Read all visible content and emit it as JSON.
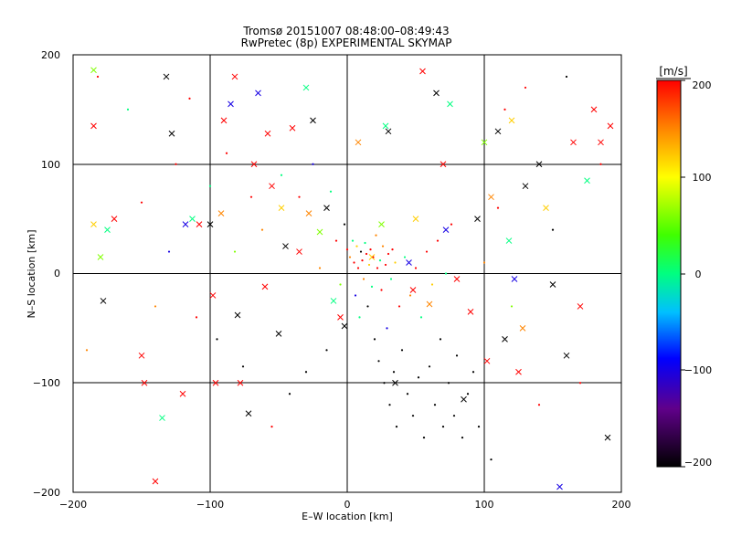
{
  "chart_data": {
    "type": "scatter",
    "title": "Tromsø 20151007 08:48:00–08:49:43",
    "subtitle": "RwPretec (8p) EXPERIMENTAL SKYMAP",
    "xlabel": "E–W location [km]",
    "ylabel": "N–S location [km]",
    "xlim": [
      -200,
      200
    ],
    "ylim": [
      -200,
      200
    ],
    "x_ticks": [
      "−200",
      "−100",
      "0",
      "100",
      "200"
    ],
    "y_ticks": [
      "−200",
      "−100",
      "0",
      "100",
      "200"
    ],
    "grid": true,
    "colorbar": {
      "label": "[m/s]",
      "range": [
        -200,
        200
      ],
      "ticks": [
        "200",
        "100",
        "0",
        "−100",
        "−200"
      ]
    },
    "series": [
      {
        "marker": "x",
        "points": [
          [
            -185,
            186,
            60
          ],
          [
            -185,
            135,
            200
          ],
          [
            -185,
            45,
            120
          ],
          [
            -180,
            15,
            60
          ],
          [
            -178,
            -25,
            -200
          ],
          [
            -175,
            40,
            0
          ],
          [
            -170,
            50,
            200
          ],
          [
            -150,
            -75,
            200
          ],
          [
            -148,
            -100,
            200
          ],
          [
            -140,
            -190,
            200
          ],
          [
            -135,
            -132,
            0
          ],
          [
            -132,
            180,
            -200
          ],
          [
            -128,
            128,
            -200
          ],
          [
            -120,
            -110,
            200
          ],
          [
            -118,
            45,
            -100
          ],
          [
            -113,
            50,
            0
          ],
          [
            -108,
            45,
            200
          ],
          [
            -100,
            45,
            -200
          ],
          [
            -98,
            -20,
            200
          ],
          [
            -96,
            -100,
            200
          ],
          [
            -92,
            55,
            150
          ],
          [
            -90,
            140,
            200
          ],
          [
            -85,
            155,
            -100
          ],
          [
            -82,
            180,
            200
          ],
          [
            -80,
            -38,
            -200
          ],
          [
            -78,
            -100,
            200
          ],
          [
            -72,
            -128,
            -200
          ],
          [
            -68,
            100,
            200
          ],
          [
            -65,
            165,
            -100
          ],
          [
            -60,
            -12,
            200
          ],
          [
            -58,
            128,
            200
          ],
          [
            -55,
            80,
            200
          ],
          [
            -50,
            -55,
            -200
          ],
          [
            -48,
            60,
            120
          ],
          [
            -45,
            25,
            -200
          ],
          [
            -40,
            133,
            200
          ],
          [
            -35,
            20,
            200
          ],
          [
            -30,
            170,
            0
          ],
          [
            -28,
            55,
            150
          ],
          [
            -25,
            140,
            -200
          ],
          [
            -20,
            38,
            60
          ],
          [
            -15,
            60,
            -200
          ],
          [
            -10,
            -25,
            0
          ],
          [
            -5,
            -40,
            200
          ],
          [
            -2,
            -48,
            -200
          ],
          [
            8,
            120,
            150
          ],
          [
            18,
            15,
            120
          ],
          [
            25,
            45,
            60
          ],
          [
            28,
            135,
            0
          ],
          [
            30,
            130,
            -200
          ],
          [
            35,
            -100,
            -200
          ],
          [
            45,
            10,
            -100
          ],
          [
            48,
            -15,
            200
          ],
          [
            50,
            50,
            120
          ],
          [
            55,
            185,
            200
          ],
          [
            60,
            -28,
            150
          ],
          [
            65,
            165,
            -200
          ],
          [
            70,
            100,
            200
          ],
          [
            72,
            40,
            -100
          ],
          [
            75,
            155,
            0
          ],
          [
            80,
            -5,
            200
          ],
          [
            85,
            -115,
            -200
          ],
          [
            90,
            -35,
            200
          ],
          [
            95,
            50,
            -200
          ],
          [
            100,
            120,
            60
          ],
          [
            102,
            -80,
            200
          ],
          [
            105,
            70,
            150
          ],
          [
            110,
            130,
            -200
          ],
          [
            115,
            -60,
            -200
          ],
          [
            118,
            30,
            0
          ],
          [
            120,
            140,
            120
          ],
          [
            122,
            -5,
            -100
          ],
          [
            125,
            -90,
            200
          ],
          [
            128,
            -50,
            150
          ],
          [
            130,
            80,
            -200
          ],
          [
            140,
            100,
            -200
          ],
          [
            145,
            60,
            120
          ],
          [
            150,
            -10,
            -200
          ],
          [
            155,
            -195,
            -100
          ],
          [
            160,
            -75,
            -200
          ],
          [
            165,
            120,
            200
          ],
          [
            170,
            -30,
            200
          ],
          [
            175,
            85,
            0
          ],
          [
            180,
            150,
            200
          ],
          [
            185,
            120,
            200
          ],
          [
            190,
            -150,
            -200
          ],
          [
            192,
            135,
            200
          ]
        ]
      },
      {
        "marker": "dot",
        "points": [
          [
            -190,
            -70,
            150
          ],
          [
            -182,
            180,
            200
          ],
          [
            -160,
            150,
            0
          ],
          [
            -150,
            65,
            200
          ],
          [
            -140,
            -30,
            150
          ],
          [
            -130,
            20,
            -100
          ],
          [
            -125,
            100,
            200
          ],
          [
            -115,
            160,
            200
          ],
          [
            -110,
            -40,
            200
          ],
          [
            -100,
            80,
            0
          ],
          [
            -95,
            -60,
            -200
          ],
          [
            -88,
            110,
            200
          ],
          [
            -82,
            20,
            60
          ],
          [
            -76,
            -85,
            -200
          ],
          [
            -70,
            70,
            200
          ],
          [
            -62,
            40,
            150
          ],
          [
            -55,
            -140,
            200
          ],
          [
            -48,
            90,
            0
          ],
          [
            -42,
            -110,
            -200
          ],
          [
            -35,
            70,
            200
          ],
          [
            -30,
            -90,
            -200
          ],
          [
            -25,
            100,
            -100
          ],
          [
            -20,
            5,
            150
          ],
          [
            -15,
            -70,
            -200
          ],
          [
            -12,
            75,
            0
          ],
          [
            -8,
            30,
            200
          ],
          [
            -5,
            -10,
            60
          ],
          [
            -2,
            45,
            -200
          ],
          [
            0,
            22,
            200
          ],
          [
            2,
            15,
            150
          ],
          [
            4,
            30,
            0
          ],
          [
            5,
            10,
            200
          ],
          [
            6,
            -20,
            -100
          ],
          [
            7,
            25,
            120
          ],
          [
            8,
            5,
            200
          ],
          [
            9,
            -40,
            0
          ],
          [
            10,
            20,
            -200
          ],
          [
            11,
            12,
            200
          ],
          [
            12,
            -5,
            150
          ],
          [
            13,
            28,
            0
          ],
          [
            14,
            18,
            200
          ],
          [
            15,
            -30,
            -200
          ],
          [
            16,
            8,
            120
          ],
          [
            17,
            22,
            200
          ],
          [
            18,
            -12,
            0
          ],
          [
            19,
            15,
            200
          ],
          [
            20,
            -60,
            -200
          ],
          [
            21,
            35,
            150
          ],
          [
            22,
            5,
            200
          ],
          [
            23,
            -80,
            -200
          ],
          [
            24,
            12,
            0
          ],
          [
            25,
            -15,
            200
          ],
          [
            26,
            25,
            150
          ],
          [
            27,
            -100,
            -200
          ],
          [
            28,
            8,
            200
          ],
          [
            29,
            -50,
            -100
          ],
          [
            30,
            18,
            200
          ],
          [
            31,
            -120,
            -200
          ],
          [
            32,
            -5,
            0
          ],
          [
            33,
            22,
            200
          ],
          [
            34,
            -90,
            -200
          ],
          [
            35,
            10,
            120
          ],
          [
            36,
            -140,
            -200
          ],
          [
            38,
            -30,
            200
          ],
          [
            40,
            -70,
            -200
          ],
          [
            42,
            15,
            0
          ],
          [
            44,
            -110,
            -200
          ],
          [
            46,
            -20,
            150
          ],
          [
            48,
            -130,
            -200
          ],
          [
            50,
            5,
            200
          ],
          [
            52,
            -95,
            -200
          ],
          [
            54,
            -40,
            0
          ],
          [
            56,
            -150,
            -200
          ],
          [
            58,
            20,
            200
          ],
          [
            60,
            -85,
            -200
          ],
          [
            62,
            -10,
            120
          ],
          [
            64,
            -120,
            -200
          ],
          [
            66,
            30,
            200
          ],
          [
            68,
            -60,
            -200
          ],
          [
            70,
            -140,
            -200
          ],
          [
            72,
            0,
            0
          ],
          [
            74,
            -100,
            -200
          ],
          [
            76,
            45,
            200
          ],
          [
            78,
            -130,
            -200
          ],
          [
            80,
            -75,
            -200
          ],
          [
            84,
            -150,
            -200
          ],
          [
            88,
            -110,
            -200
          ],
          [
            92,
            -90,
            -200
          ],
          [
            96,
            -140,
            -200
          ],
          [
            100,
            10,
            150
          ],
          [
            105,
            -170,
            -200
          ],
          [
            110,
            60,
            200
          ],
          [
            115,
            150,
            200
          ],
          [
            120,
            -30,
            60
          ],
          [
            130,
            170,
            200
          ],
          [
            140,
            -120,
            200
          ],
          [
            150,
            40,
            -200
          ],
          [
            160,
            180,
            -200
          ],
          [
            170,
            -100,
            200
          ],
          [
            185,
            100,
            200
          ]
        ]
      }
    ]
  }
}
